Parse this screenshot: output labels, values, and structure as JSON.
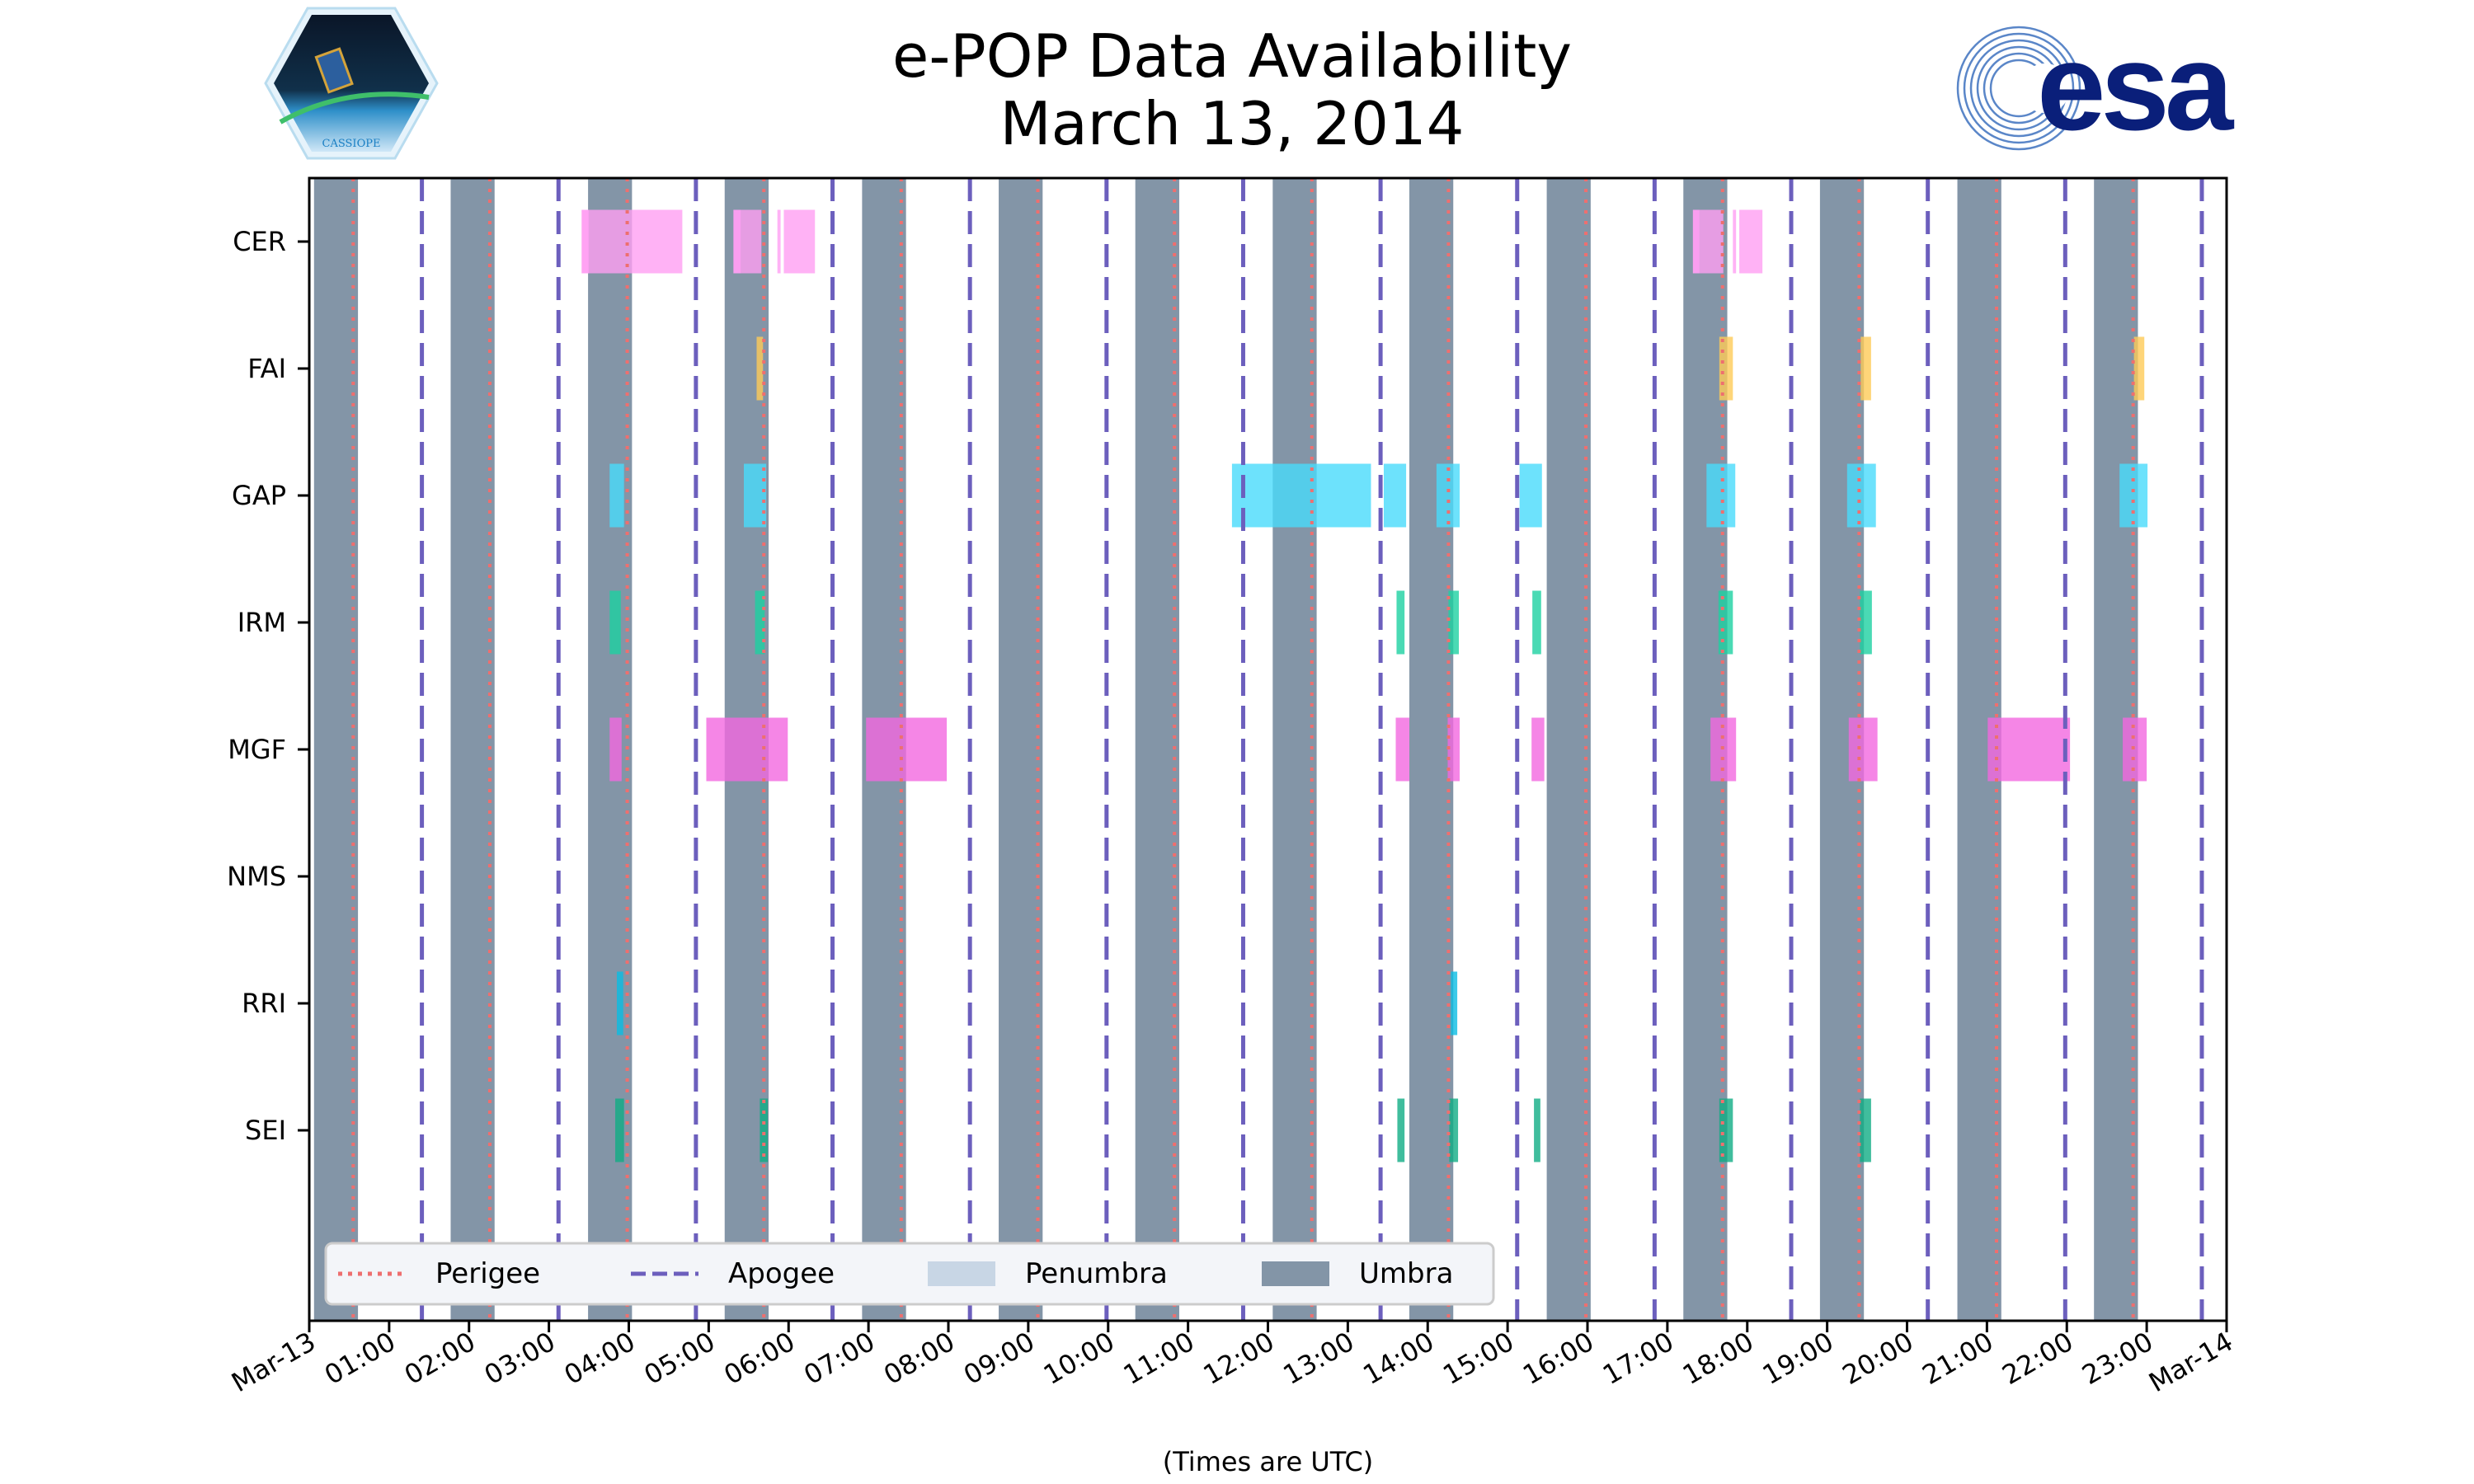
{
  "header": {
    "title_line1": "e-POP Data Availability",
    "title_line2": "March 13, 2014",
    "logo_left_text": "CASSIOPE",
    "logo_right_text": "esa"
  },
  "chart_data": {
    "type": "timeline",
    "title": "e-POP Data Availability March 13, 2014",
    "xlabel": "(Times are UTC)",
    "xlim_hours": [
      0,
      24
    ],
    "xtick_labels": [
      "Mar-13",
      "01:00",
      "02:00",
      "03:00",
      "04:00",
      "05:00",
      "06:00",
      "07:00",
      "08:00",
      "09:00",
      "10:00",
      "11:00",
      "12:00",
      "13:00",
      "14:00",
      "15:00",
      "16:00",
      "17:00",
      "18:00",
      "19:00",
      "20:00",
      "21:00",
      "22:00",
      "23:00",
      "Mar-14"
    ],
    "instruments": [
      {
        "name": "CER",
        "color": "#ff9ff3",
        "intervals": [
          [
            3.41,
            3.5
          ],
          [
            3.41,
            4.67
          ],
          [
            5.31,
            5.4
          ],
          [
            5.31,
            5.66
          ],
          [
            5.86,
            5.9
          ],
          [
            5.94,
            6.33
          ],
          [
            17.32,
            17.4
          ],
          [
            17.32,
            17.7
          ],
          [
            17.82,
            17.86
          ],
          [
            17.9,
            18.19
          ]
        ]
      },
      {
        "name": "FAI",
        "color": "#feca57",
        "intervals": [
          [
            5.6,
            5.68
          ],
          [
            17.65,
            17.82
          ],
          [
            19.42,
            19.55
          ],
          [
            22.84,
            22.97
          ]
        ]
      },
      {
        "name": "GAP",
        "color": "#48dbfb",
        "intervals": [
          [
            3.76,
            3.94
          ],
          [
            5.44,
            5.72
          ],
          [
            11.55,
            13.29
          ],
          [
            13.45,
            13.73
          ],
          [
            14.11,
            14.4
          ],
          [
            15.15,
            15.43
          ],
          [
            17.49,
            17.85
          ],
          [
            19.25,
            19.61
          ],
          [
            22.66,
            23.01
          ]
        ]
      },
      {
        "name": "IRM",
        "color": "#1dd1a1",
        "intervals": [
          [
            3.76,
            3.9
          ],
          [
            5.58,
            5.7
          ],
          [
            13.61,
            13.71
          ],
          [
            14.26,
            14.39
          ],
          [
            15.31,
            15.42
          ],
          [
            17.64,
            17.82
          ],
          [
            19.41,
            19.56
          ]
        ]
      },
      {
        "name": "MGF",
        "color": "#f368e0",
        "intervals": [
          [
            3.76,
            3.91
          ],
          [
            4.97,
            5.99
          ],
          [
            6.97,
            7.98
          ],
          [
            13.6,
            13.77
          ],
          [
            14.25,
            14.4
          ],
          [
            15.3,
            15.46
          ],
          [
            17.54,
            17.86
          ],
          [
            19.27,
            19.63
          ],
          [
            21.01,
            22.04
          ],
          [
            22.7,
            23.0
          ]
        ]
      },
      {
        "name": "NMS",
        "color": "#ee5253",
        "intervals": []
      },
      {
        "name": "RRI",
        "color": "#0abde3",
        "intervals": [
          [
            3.85,
            3.93
          ],
          [
            14.29,
            14.37
          ]
        ]
      },
      {
        "name": "SEI",
        "color": "#10ac84",
        "intervals": [
          [
            3.83,
            3.94
          ],
          [
            5.64,
            5.74
          ],
          [
            13.62,
            13.71
          ],
          [
            14.27,
            14.38
          ],
          [
            15.33,
            15.41
          ],
          [
            17.65,
            17.82
          ],
          [
            19.41,
            19.55
          ]
        ]
      }
    ],
    "umbra_intervals": [
      [
        0.06,
        0.61
      ],
      [
        1.77,
        2.32
      ],
      [
        3.49,
        4.04
      ],
      [
        5.2,
        5.75
      ],
      [
        6.92,
        7.47
      ],
      [
        8.63,
        9.18
      ],
      [
        10.34,
        10.89
      ],
      [
        12.06,
        12.61
      ],
      [
        13.77,
        14.32
      ],
      [
        15.49,
        16.04
      ],
      [
        17.2,
        17.75
      ],
      [
        18.91,
        19.46
      ],
      [
        20.63,
        21.18
      ],
      [
        22.34,
        22.89
      ]
    ],
    "perigee_times": [
      0.55,
      2.26,
      3.98,
      5.69,
      7.41,
      9.12,
      10.83,
      12.55,
      14.26,
      15.98,
      17.69,
      19.4,
      21.12,
      22.83
    ],
    "apogee_times": [
      1.41,
      3.12,
      4.84,
      6.55,
      8.27,
      9.98,
      11.69,
      13.41,
      15.12,
      16.84,
      18.55,
      20.26,
      21.98,
      23.69
    ],
    "legend": {
      "placement": "bottom",
      "items": [
        {
          "label": "Perigee",
          "color": "#ee6f6f",
          "style": "dotted"
        },
        {
          "label": "Apogee",
          "color": "#6c5fbd",
          "style": "dashed"
        },
        {
          "label": "Penumbra",
          "color": "#c8d6e5",
          "style": "patch"
        },
        {
          "label": "Umbra",
          "color": "#8395a7",
          "style": "patch"
        }
      ]
    }
  }
}
